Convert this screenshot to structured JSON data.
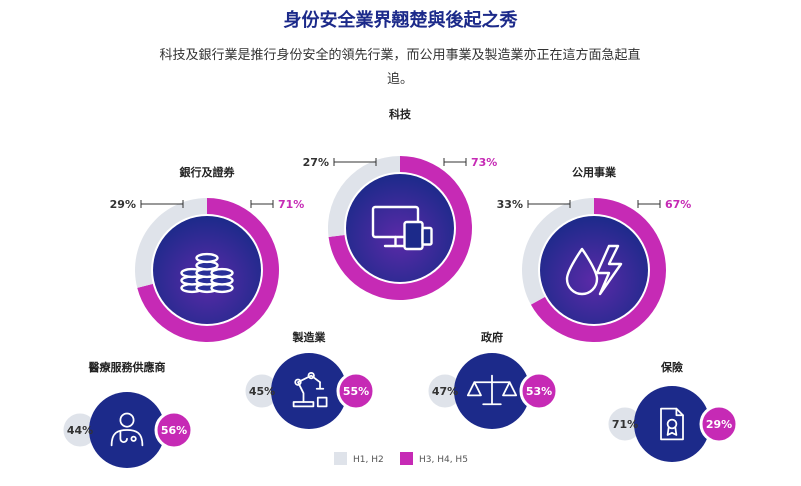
{
  "title": "身份安全業界翹楚與後起之秀",
  "subtitle": "科技及銀行業是推行身份安全的領先行業，而公用事業及製造業亦正在這方面急起直追。",
  "colors": {
    "early": "#dfe3ea",
    "later": "#c62ab5",
    "navy": "#1c2a8a"
  },
  "chart_data": [
    {
      "type": "pie",
      "style": "donut",
      "series": [
        {
          "category": "科技",
          "values": [
            27,
            73
          ],
          "icon": "devices-icon"
        },
        {
          "category": "銀行及證券",
          "values": [
            29,
            71
          ],
          "icon": "coins-icon"
        },
        {
          "category": "公用事業",
          "values": [
            33,
            67
          ],
          "icon": "water-power-icon"
        }
      ]
    },
    {
      "type": "bar",
      "style": "badges",
      "series": [
        {
          "category": "醫療服務供應商",
          "values": [
            44,
            56
          ],
          "icon": "doctor-icon"
        },
        {
          "category": "製造業",
          "values": [
            45,
            55
          ],
          "icon": "robot-arm-icon"
        },
        {
          "category": "政府",
          "values": [
            47,
            53
          ],
          "icon": "scales-icon"
        },
        {
          "category": "保險",
          "values": [
            71,
            29
          ],
          "icon": "policy-document-icon"
        }
      ]
    }
  ],
  "legend": [
    {
      "label": "H1, H2",
      "color": "#dfe3ea"
    },
    {
      "label": "H3, H4, H5",
      "color": "#c62ab5"
    }
  ]
}
